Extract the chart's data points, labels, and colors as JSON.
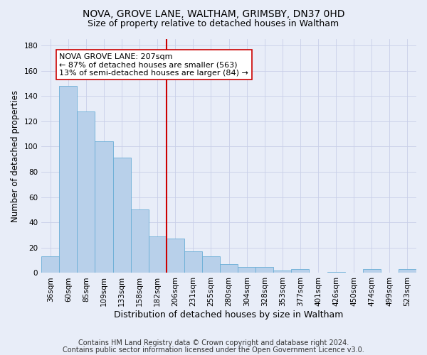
{
  "title1": "NOVA, GROVE LANE, WALTHAM, GRIMSBY, DN37 0HD",
  "title2": "Size of property relative to detached houses in Waltham",
  "xlabel": "Distribution of detached houses by size in Waltham",
  "ylabel": "Number of detached properties",
  "footnote1": "Contains HM Land Registry data © Crown copyright and database right 2024.",
  "footnote2": "Contains public sector information licensed under the Open Government Licence v3.0.",
  "bar_labels": [
    "36sqm",
    "60sqm",
    "85sqm",
    "109sqm",
    "133sqm",
    "158sqm",
    "182sqm",
    "206sqm",
    "231sqm",
    "255sqm",
    "280sqm",
    "304sqm",
    "328sqm",
    "353sqm",
    "377sqm",
    "401sqm",
    "426sqm",
    "450sqm",
    "474sqm",
    "499sqm",
    "523sqm"
  ],
  "bar_values": [
    13,
    148,
    128,
    104,
    91,
    50,
    29,
    27,
    17,
    13,
    7,
    5,
    5,
    2,
    3,
    0,
    1,
    0,
    3,
    0,
    3
  ],
  "bar_color": "#b8d0ea",
  "bar_edge_color": "#6aaed6",
  "vline_index": 7,
  "vline_color": "#cc0000",
  "annotation_line1": "NOVA GROVE LANE: 207sqm",
  "annotation_line2": "← 87% of detached houses are smaller (563)",
  "annotation_line3": "13% of semi-detached houses are larger (84) →",
  "annotation_box_color": "white",
  "annotation_box_edge": "#cc0000",
  "ylim": [
    0,
    185
  ],
  "yticks": [
    0,
    20,
    40,
    60,
    80,
    100,
    120,
    140,
    160,
    180
  ],
  "grid_color": "#c8cfe8",
  "background_color": "#e8edf8",
  "title1_fontsize": 10,
  "title2_fontsize": 9,
  "xlabel_fontsize": 9,
  "ylabel_fontsize": 8.5,
  "tick_fontsize": 7.5,
  "annotation_fontsize": 8,
  "footnote_fontsize": 7
}
